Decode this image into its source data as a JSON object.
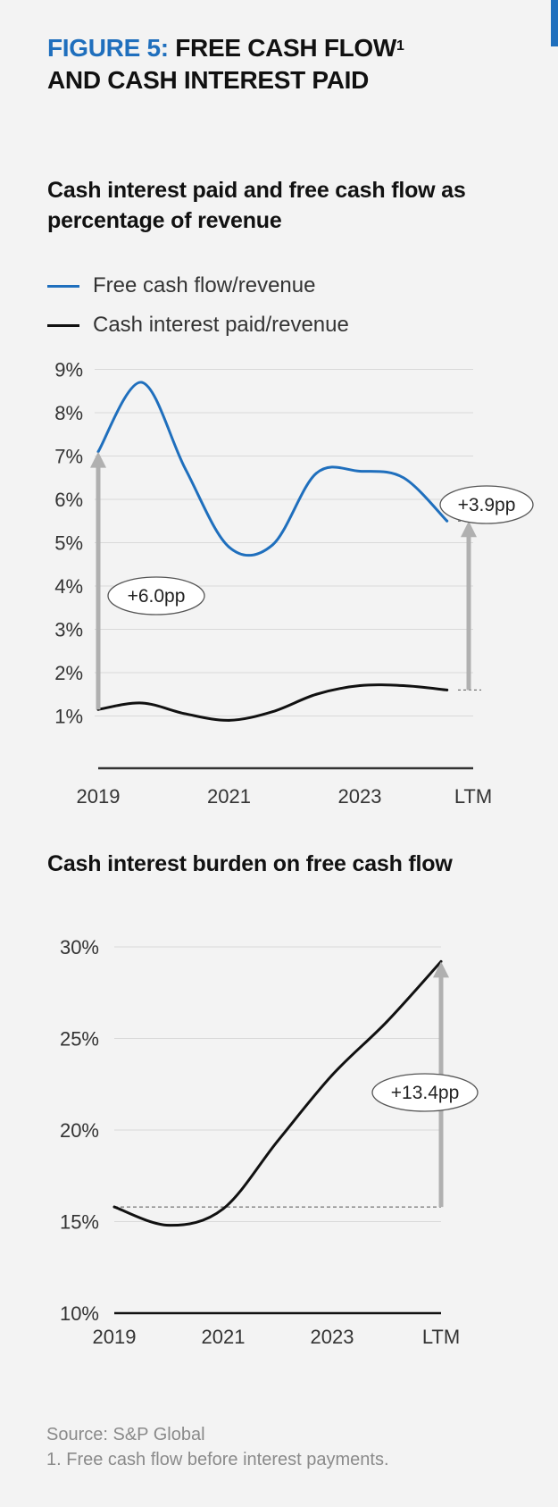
{
  "header": {
    "figure_label": "FIGURE 5:",
    "title_line1": "FREE CASH FLOW",
    "title_sup": "1",
    "title_line2": "AND CASH INTEREST PAID"
  },
  "colors": {
    "accent": "#1f6fbd",
    "black": "#111111",
    "arrow": "#b0b0b0",
    "grid": "#d9d9d9"
  },
  "chart_data": [
    {
      "type": "line",
      "title": "Cash interest paid and free cash flow as percentage of revenue",
      "x": [
        0,
        1,
        2,
        3,
        4,
        5,
        6,
        7,
        8
      ],
      "x_tick_positions": [
        0,
        3,
        6,
        8.6
      ],
      "x_tick_labels": [
        "2019",
        "2021",
        "2023",
        "LTM"
      ],
      "ylim": [
        0,
        9
      ],
      "y_ticks": [
        1,
        2,
        3,
        4,
        5,
        6,
        7,
        8,
        9
      ],
      "y_tick_labels": [
        "1%",
        "2%",
        "3%",
        "4%",
        "5%",
        "6%",
        "7%",
        "8%",
        "9%"
      ],
      "grid": true,
      "legend_position": "top-left",
      "series": [
        {
          "name": "Free cash flow/revenue",
          "color": "#1f6fbd",
          "values": [
            7.1,
            8.7,
            6.7,
            4.9,
            4.95,
            6.6,
            6.65,
            6.5,
            5.5
          ]
        },
        {
          "name": "Cash interest paid/revenue",
          "color": "#111111",
          "values": [
            1.15,
            1.3,
            1.05,
            0.9,
            1.1,
            1.5,
            1.7,
            1.7,
            1.6
          ]
        }
      ],
      "annotations": [
        {
          "label": "+6.0pp",
          "x": 0,
          "from": 1.15,
          "to": 7.1
        },
        {
          "label": "+3.9pp",
          "x": 8.6,
          "from": 1.6,
          "to": 5.5
        }
      ]
    },
    {
      "type": "line",
      "title": "Cash interest burden on free cash flow",
      "x": [
        0,
        1,
        2,
        3,
        4,
        5,
        6
      ],
      "x_tick_positions": [
        0,
        2,
        4,
        6
      ],
      "x_tick_labels": [
        "2019",
        "2021",
        "2023",
        "LTM"
      ],
      "ylim": [
        10,
        30
      ],
      "y_ticks": [
        10,
        15,
        20,
        25,
        30
      ],
      "y_tick_labels": [
        "10%",
        "15%",
        "20%",
        "25%",
        "30%"
      ],
      "grid": true,
      "series": [
        {
          "name": "Cash interest burden",
          "color": "#111111",
          "values": [
            15.8,
            14.8,
            15.7,
            19.4,
            23.0,
            25.9,
            29.2
          ]
        }
      ],
      "reference_line": 15.8,
      "annotations": [
        {
          "label": "+13.4pp",
          "x": 6,
          "from": 15.8,
          "to": 29.2
        }
      ]
    }
  ],
  "footer": {
    "source": "Source: S&P Global",
    "note": "1. Free cash flow before interest payments."
  }
}
